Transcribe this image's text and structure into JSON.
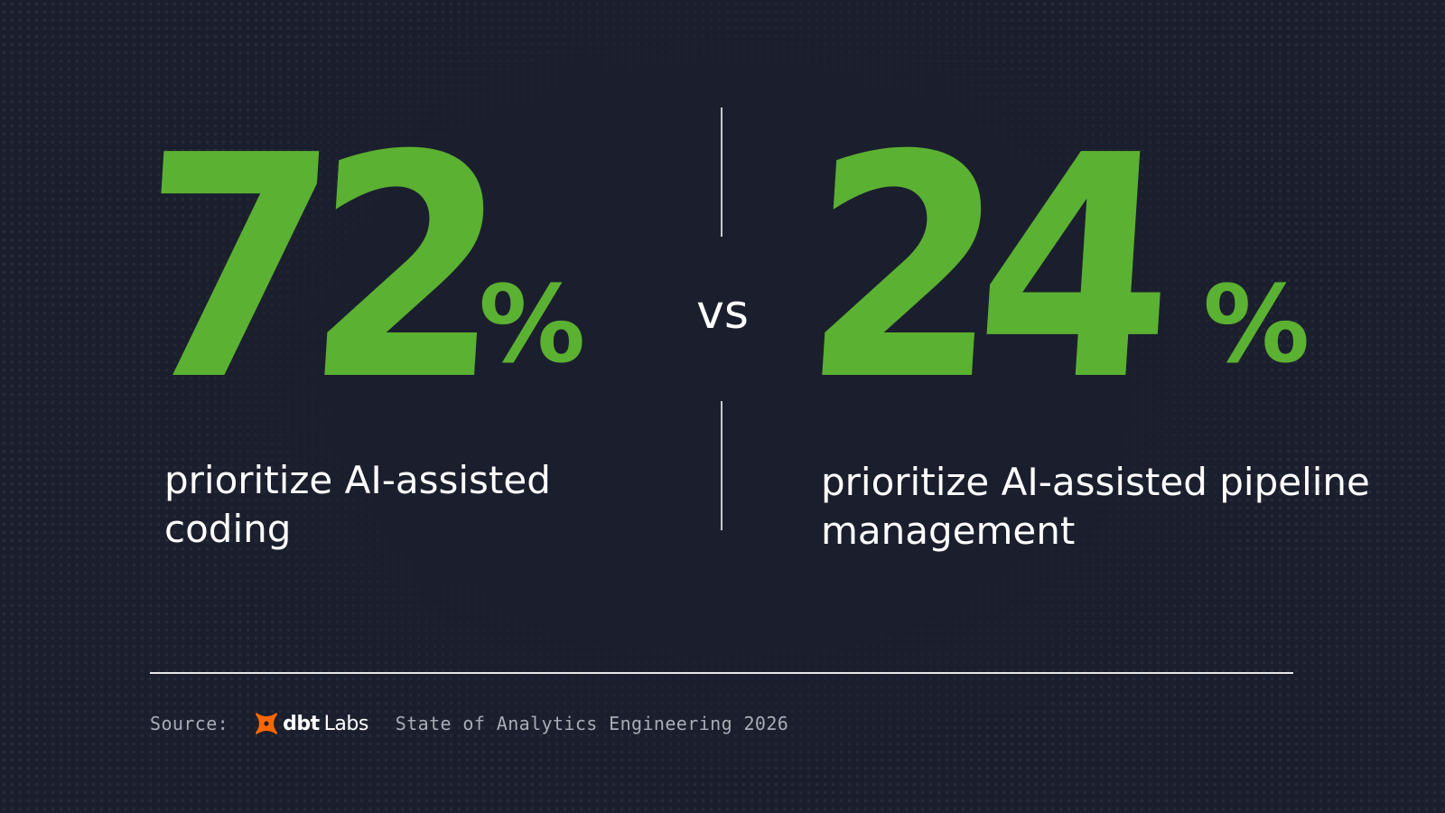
{
  "stats": {
    "left": {
      "number": "72",
      "percent_sign": "%",
      "description": "prioritize AI-assisted coding"
    },
    "right": {
      "number": "24",
      "percent_sign": "%",
      "description": "prioritize AI-assisted pipeline management"
    },
    "comparison": "vs"
  },
  "footer": {
    "source_label": "Source:",
    "logo": {
      "icon": "dbt-logo-icon",
      "brand_bold": "dbt",
      "brand_regular": "Labs"
    },
    "report_title": "State of Analytics Engineering 2026"
  },
  "colors": {
    "background": "#1b1f2d",
    "accent_green": "#5bb132",
    "logo_orange": "#fe6703",
    "text_white": "#ffffff",
    "muted_text": "#a9acb6"
  }
}
